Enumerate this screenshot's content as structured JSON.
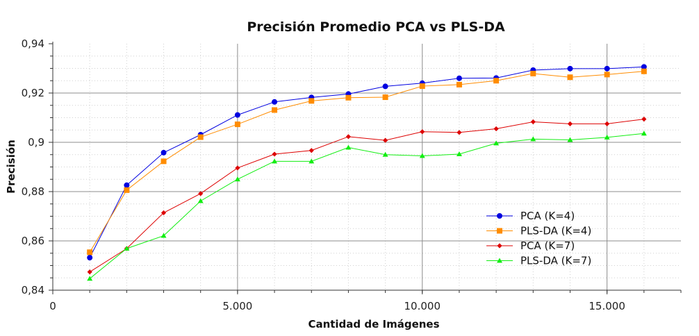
{
  "chart_data": {
    "type": "line",
    "title": "Precisión Promedio PCA vs PLS-DA",
    "xlabel": "Cantidad de Imágenes",
    "ylabel": "Precisión",
    "xlim": [
      0,
      17000
    ],
    "ylim": [
      0.84,
      0.94
    ],
    "x_ticks": [
      0,
      5000,
      10000,
      15000
    ],
    "x_tick_labels": [
      "0",
      "5.000",
      "10.000",
      "15.000"
    ],
    "y_ticks": [
      0.84,
      0.86,
      0.88,
      0.9,
      0.92,
      0.94
    ],
    "y_tick_labels": [
      "0,84",
      "0,86",
      "0,88",
      "0,9",
      "0,92",
      "0,94"
    ],
    "grid": true,
    "legend_position": "right",
    "x": [
      1000,
      2000,
      3000,
      4000,
      5000,
      6000,
      7000,
      8000,
      9000,
      10000,
      11000,
      12000,
      13000,
      14000,
      15000,
      16000
    ],
    "series": [
      {
        "name": "PCA (K=4)",
        "color": "#0000e0",
        "marker": "circle",
        "values": [
          0.8532,
          0.8826,
          0.8958,
          0.9031,
          0.9111,
          0.9164,
          0.9182,
          0.9196,
          0.9227,
          0.924,
          0.926,
          0.9261,
          0.9293,
          0.9299,
          0.9299,
          0.9306
        ]
      },
      {
        "name": "PLS-DA (K=4)",
        "color": "#ff8c00",
        "marker": "square",
        "values": [
          0.8554,
          0.8806,
          0.8923,
          0.9021,
          0.9073,
          0.9131,
          0.9168,
          0.9181,
          0.9183,
          0.9228,
          0.9234,
          0.925,
          0.9279,
          0.9264,
          0.9275,
          0.9288
        ]
      },
      {
        "name": "PCA (K=7)",
        "color": "#dd0000",
        "marker": "diamond",
        "values": [
          0.8474,
          0.8569,
          0.8714,
          0.8792,
          0.8896,
          0.8952,
          0.8967,
          0.9023,
          0.9008,
          0.9043,
          0.904,
          0.9055,
          0.9083,
          0.9075,
          0.9075,
          0.9094
        ]
      },
      {
        "name": "PLS-DA (K=7)",
        "color": "#11ee11",
        "marker": "triangle",
        "values": [
          0.8447,
          0.8569,
          0.8621,
          0.8762,
          0.885,
          0.8923,
          0.8923,
          0.8979,
          0.895,
          0.8945,
          0.8952,
          0.8996,
          0.9013,
          0.901,
          0.902,
          0.9036
        ]
      }
    ]
  }
}
